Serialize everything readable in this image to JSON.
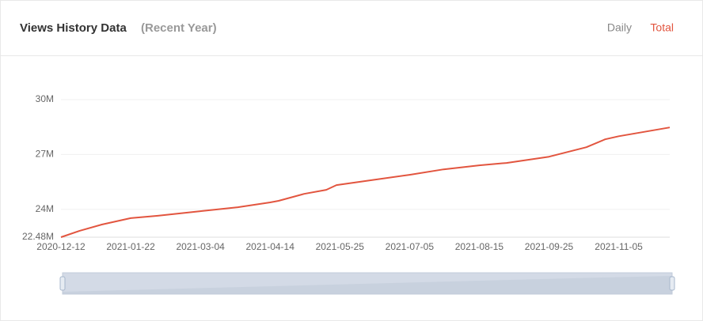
{
  "tabs": [
    "Daily",
    "Total"
  ],
  "active_tab": 1,
  "chart_data": {
    "type": "line",
    "title": "Views History Data",
    "subtitle": "(Recent Year)",
    "color": "#e2553f",
    "x": [
      "2020-12-12",
      "2020-12-23",
      "2021-01-05",
      "2021-01-22",
      "2021-02-07",
      "2021-03-04",
      "2021-03-26",
      "2021-04-14",
      "2021-04-19",
      "2021-05-04",
      "2021-05-17",
      "2021-05-23",
      "2021-06-08",
      "2021-07-05",
      "2021-07-25",
      "2021-08-15",
      "2021-08-31",
      "2021-09-25",
      "2021-10-17",
      "2021-10-28",
      "2021-11-05",
      "2021-12-05"
    ],
    "values": [
      22480000,
      22830000,
      23170000,
      23520000,
      23650000,
      23900000,
      24120000,
      24380000,
      24470000,
      24850000,
      25070000,
      25330000,
      25540000,
      25890000,
      26190000,
      26410000,
      26540000,
      26880000,
      27400000,
      27830000,
      28000000,
      28480000
    ],
    "xlim": [
      "2020-12-12",
      "2021-12-05"
    ],
    "xticks": [
      "2020-12-12",
      "2021-01-22",
      "2021-03-04",
      "2021-04-14",
      "2021-05-25",
      "2021-07-05",
      "2021-08-15",
      "2021-09-25",
      "2021-11-05"
    ],
    "ylim": [
      22480000,
      30000000
    ],
    "yticks": [
      {
        "value": 22480000,
        "label": "22.48M"
      },
      {
        "value": 24000000,
        "label": "24M"
      },
      {
        "value": 27000000,
        "label": "27M"
      },
      {
        "value": 30000000,
        "label": "30M"
      }
    ],
    "grid": true
  }
}
